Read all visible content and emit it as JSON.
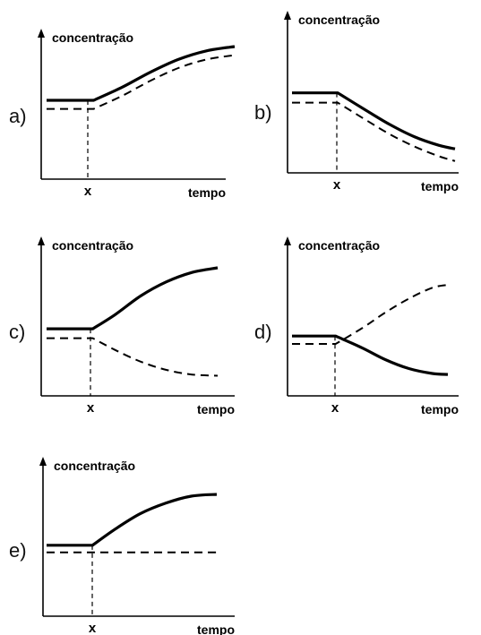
{
  "chart_data": [
    {
      "type": "line",
      "label": "a)",
      "ylabel": "concentração",
      "xlabel": "tempo",
      "x_marker": "x",
      "x": [
        0,
        0.25,
        0.4,
        0.55,
        0.7,
        0.85,
        1.0
      ],
      "xlim": [
        0,
        1
      ],
      "ylim": [
        0,
        1
      ],
      "series": [
        {
          "style": "solid",
          "values": [
            0.5,
            0.5,
            0.62,
            0.76,
            0.88,
            0.96,
            1.0
          ]
        },
        {
          "style": "dashed",
          "values": [
            0.42,
            0.42,
            0.54,
            0.68,
            0.8,
            0.88,
            0.92
          ]
        }
      ]
    },
    {
      "type": "line",
      "label": "b)",
      "ylabel": "concentração",
      "xlabel": "tempo",
      "x_marker": "x",
      "x": [
        0,
        0.28,
        0.45,
        0.6,
        0.75,
        0.9,
        1.0
      ],
      "xlim": [
        0,
        1
      ],
      "ylim": [
        0,
        1
      ],
      "series": [
        {
          "style": "solid",
          "values": [
            0.62,
            0.62,
            0.48,
            0.36,
            0.26,
            0.19,
            0.16
          ]
        },
        {
          "style": "dashed",
          "values": [
            0.54,
            0.54,
            0.4,
            0.28,
            0.18,
            0.1,
            0.06
          ]
        }
      ]
    },
    {
      "type": "line",
      "label": "c)",
      "ylabel": "concentração",
      "xlabel": "tempo",
      "x_marker": "x",
      "x": [
        0,
        0.27,
        0.4,
        0.55,
        0.7,
        0.85,
        1.0
      ],
      "xlim": [
        0,
        1
      ],
      "ylim": [
        0,
        1
      ],
      "series": [
        {
          "style": "solid",
          "values": [
            0.48,
            0.48,
            0.6,
            0.76,
            0.88,
            0.96,
            1.0
          ]
        },
        {
          "style": "dashed",
          "values": [
            0.4,
            0.4,
            0.3,
            0.2,
            0.13,
            0.09,
            0.08
          ]
        }
      ]
    },
    {
      "type": "line",
      "label": "d)",
      "ylabel": "concentração",
      "xlabel": "tempo",
      "x_marker": "x",
      "x": [
        0,
        0.28,
        0.45,
        0.6,
        0.75,
        0.9,
        1.0
      ],
      "xlim": [
        0,
        1
      ],
      "ylim": [
        0,
        1
      ],
      "series": [
        {
          "style": "solid",
          "values": [
            0.48,
            0.48,
            0.36,
            0.24,
            0.15,
            0.1,
            0.09
          ]
        },
        {
          "style": "dashed",
          "values": [
            0.4,
            0.4,
            0.56,
            0.72,
            0.86,
            0.97,
            1.0
          ]
        }
      ]
    },
    {
      "type": "line",
      "label": "e)",
      "ylabel": "concentração",
      "xlabel": "tempo",
      "x_marker": "x",
      "x": [
        0,
        0.27,
        0.4,
        0.55,
        0.7,
        0.85,
        1.0
      ],
      "xlim": [
        0,
        1
      ],
      "ylim": [
        0,
        1
      ],
      "series": [
        {
          "style": "solid",
          "values": [
            0.42,
            0.42,
            0.6,
            0.78,
            0.9,
            0.98,
            1.0
          ]
        },
        {
          "style": "dashed",
          "values": [
            0.34,
            0.34,
            0.34,
            0.34,
            0.34,
            0.34,
            0.34
          ]
        }
      ]
    }
  ]
}
